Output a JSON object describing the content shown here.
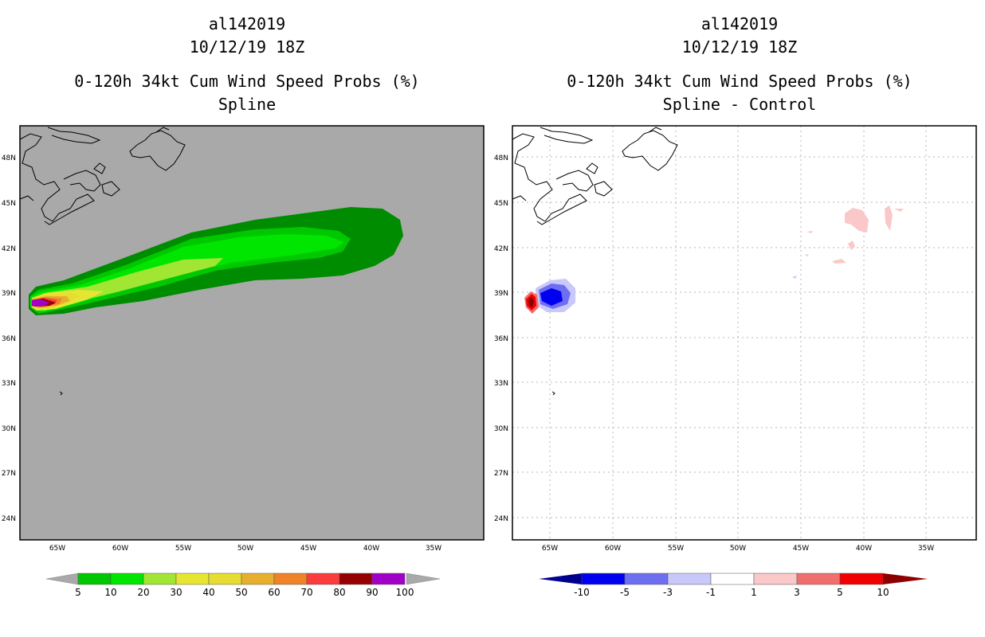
{
  "left_panel": {
    "storm_id": "al142019",
    "datetime": "10/12/19 18Z",
    "product": "0-120h 34kt Cum Wind Speed Probs (%)",
    "subtitle": "Spline",
    "colorbar": {
      "labels": [
        "5",
        "10",
        "20",
        "30",
        "40",
        "50",
        "60",
        "70",
        "80",
        "90",
        "100"
      ],
      "colors": [
        "#008c00",
        "#00c800",
        "#00e600",
        "#a0e632",
        "#e6e632",
        "#e6dc32",
        "#e6af2d",
        "#f08228",
        "#fa3c3c",
        "#960000",
        "#a000c8"
      ]
    }
  },
  "right_panel": {
    "storm_id": "al142019",
    "datetime": "10/12/19 18Z",
    "product": "0-120h 34kt Cum Wind Speed Probs (%)",
    "subtitle": "Spline - Control",
    "colorbar": {
      "labels": [
        "-10",
        "-5",
        "-3",
        "-1",
        "1",
        "3",
        "5",
        "10"
      ],
      "colors": [
        "#00008c",
        "#0000f0",
        "#6e6ef0",
        "#c8c8fa",
        "#ffffff",
        "#fac8c8",
        "#f06e6e",
        "#f00000",
        "#8c0000"
      ]
    }
  },
  "map_axes": {
    "lat_labels": [
      "48N",
      "45N",
      "42N",
      "39N",
      "36N",
      "33N",
      "30N",
      "27N",
      "24N"
    ],
    "lon_labels": [
      "65W",
      "60W",
      "55W",
      "50W",
      "45W",
      "40W",
      "35W"
    ]
  },
  "colors": {
    "land_background": "#a9a9a9",
    "coast": "#000000",
    "grid": "#b4b4b4"
  }
}
